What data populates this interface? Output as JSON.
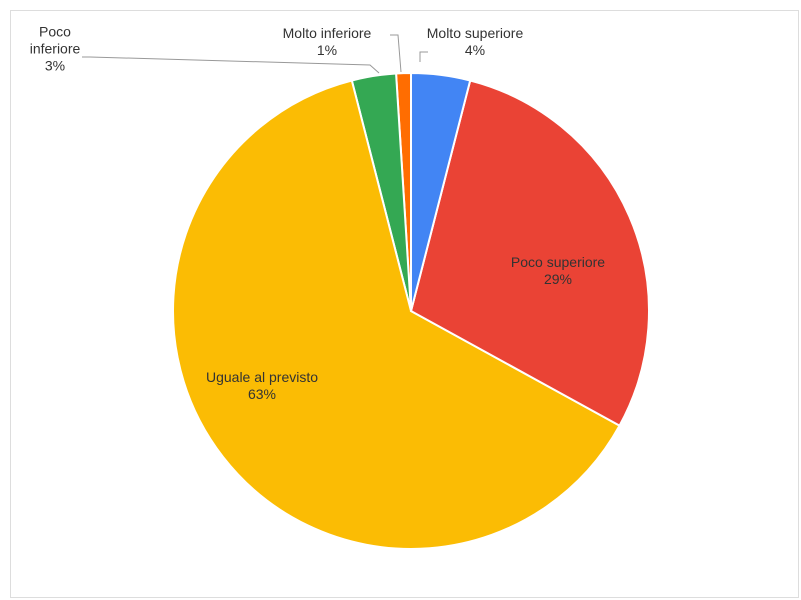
{
  "chart_data": {
    "type": "pie",
    "categories": [
      "Molto superiore",
      "Poco superiore",
      "Uguale al previsto",
      "Poco inferiore",
      "Molto inferiore"
    ],
    "values": [
      4,
      29,
      63,
      3,
      1
    ],
    "value_labels": [
      "4%",
      "29%",
      "63%",
      "3%",
      "1%"
    ],
    "colors": [
      "#4285f4",
      "#ea4335",
      "#fbbc04",
      "#34a853",
      "#ff6d01"
    ]
  }
}
